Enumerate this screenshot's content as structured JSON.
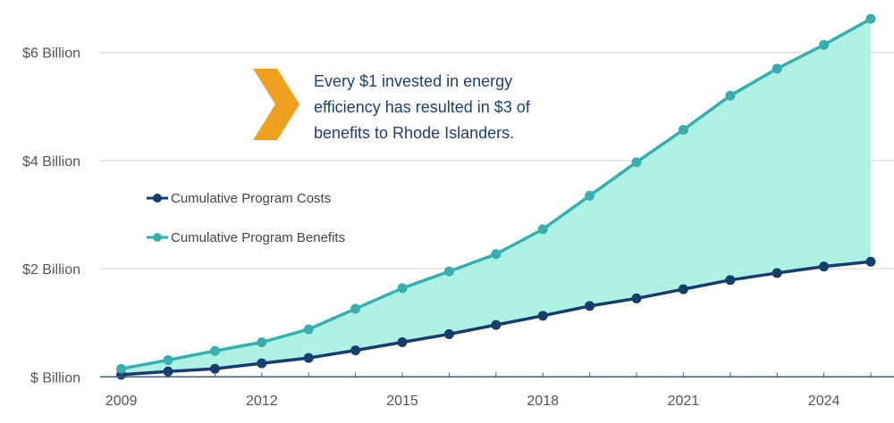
{
  "chart_data": {
    "type": "area",
    "title": "",
    "xlabel": "",
    "ylabel": "",
    "x": [
      2009,
      2010,
      2011,
      2012,
      2013,
      2014,
      2015,
      2016,
      2017,
      2018,
      2019,
      2020,
      2021,
      2022,
      2023,
      2024,
      2025
    ],
    "x_tick_labels": [
      "2009",
      "2012",
      "2015",
      "2018",
      "2021",
      "2024"
    ],
    "x_tick_values": [
      2009,
      2012,
      2015,
      2018,
      2021,
      2024
    ],
    "y_tick_labels": [
      "$ Billion",
      "$2 Billion",
      "$4 Billion",
      "$6 Billion"
    ],
    "y_tick_values": [
      0,
      2,
      4,
      6
    ],
    "ylim": [
      0,
      6.7
    ],
    "xlim": [
      2009,
      2025
    ],
    "y_unit": "billion USD",
    "grid": "horizontal",
    "legend_placement": "left-middle",
    "series": [
      {
        "name": "Cumulative Program Costs",
        "color": "#163d6b",
        "values": [
          0.04,
          0.1,
          0.15,
          0.25,
          0.35,
          0.49,
          0.64,
          0.79,
          0.96,
          1.13,
          1.31,
          1.45,
          1.62,
          1.79,
          1.92,
          2.04,
          2.13
        ]
      },
      {
        "name": "Cumulative Program Benefits",
        "color": "#3aaeae",
        "values": [
          0.15,
          0.31,
          0.48,
          0.64,
          0.88,
          1.26,
          1.64,
          1.95,
          2.27,
          2.73,
          3.35,
          3.97,
          4.57,
          5.2,
          5.7,
          6.14,
          6.62
        ]
      }
    ],
    "fill_between_color": "#adf2e3",
    "annotation": {
      "lines": [
        "Every $1 invested in energy",
        "efficiency has resulted in $3 of",
        "benefits to Rhode Islanders."
      ],
      "icon": "chevron-right-icon",
      "icon_color": "#f0a020"
    }
  }
}
